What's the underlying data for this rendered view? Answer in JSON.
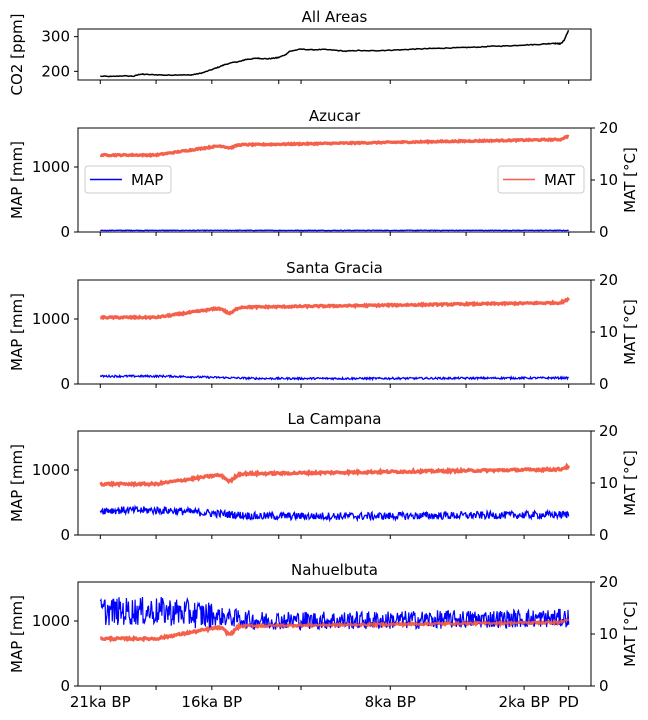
{
  "chart_data": [
    {
      "type": "line",
      "title": "All Areas",
      "ylabel": "CO2 [ppm]",
      "ylim": [
        175,
        322
      ],
      "yticks": [
        200,
        300
      ],
      "x_ticks": [
        "21ka BP",
        "16ka BP",
        "8ka BP",
        "2ka BP",
        "PD"
      ],
      "x_tick_positions_ka": [
        -21,
        -16,
        -8,
        -2,
        0
      ],
      "xlim_ka": [
        -22,
        1
      ],
      "show_xtick_labels": false,
      "series": [
        {
          "color": "#000000",
          "x_ka": [
            -21,
            -20.5,
            -20,
            -19.5,
            -19.2,
            -19,
            -18.5,
            -18,
            -17.5,
            -17,
            -16.7,
            -16.4,
            -16,
            -15.7,
            -15.4,
            -15,
            -14.7,
            -14.5,
            -14.2,
            -14,
            -13.8,
            -13.5,
            -13.2,
            -13,
            -12.7,
            -12.5,
            -12,
            -11.5,
            -11,
            -10.5,
            -10,
            -9.5,
            -9,
            -8.5,
            -8,
            -7.5,
            -7,
            -6.5,
            -6,
            -5.5,
            -5,
            -4.5,
            -4,
            -3.5,
            -3,
            -2.5,
            -2,
            -1.5,
            -1,
            -0.7,
            -0.5,
            -0.4,
            -0.3,
            -0.2,
            -0.1,
            0
          ],
          "values": [
            186,
            185,
            187,
            186,
            192,
            191,
            190,
            189,
            190,
            189,
            192,
            196,
            205,
            212,
            220,
            226,
            229,
            234,
            236,
            238,
            237,
            236,
            238,
            240,
            248,
            258,
            264,
            262,
            263,
            261,
            258,
            260,
            259,
            260,
            261,
            262,
            264,
            265,
            266,
            267,
            268,
            269,
            270,
            272,
            273,
            274,
            276,
            277,
            279,
            281,
            280,
            279,
            283,
            290,
            305,
            318
          ]
        }
      ]
    },
    {
      "type": "line",
      "title": "Azucar",
      "ylabel": "MAP [mm]",
      "y2label": "MAT [°C]",
      "ylim": [
        0,
        1600
      ],
      "yticks": [
        0,
        1000
      ],
      "y2lim": [
        0,
        20
      ],
      "y2ticks": [
        0,
        10,
        20
      ],
      "x_ticks": [
        "21ka BP",
        "16ka BP",
        "8ka BP",
        "2ka BP",
        "PD"
      ],
      "xlim_ka": [
        -22,
        1
      ],
      "show_xtick_labels": false,
      "legend_left": "MAP",
      "legend_right": "MAT",
      "map": {
        "level": 25,
        "amp": 4
      },
      "mat": {
        "base": 14.8,
        "rise": 2.0,
        "dip": 0.6,
        "end": 18.0,
        "amp": 0.12
      }
    },
    {
      "type": "line",
      "title": "Santa Gracia",
      "ylabel": "MAP [mm]",
      "y2label": "MAT [°C]",
      "ylim": [
        0,
        1600
      ],
      "yticks": [
        0,
        1000
      ],
      "y2lim": [
        0,
        20
      ],
      "y2ticks": [
        0,
        10,
        20
      ],
      "x_ticks": [
        "21ka BP",
        "16ka BP",
        "8ka BP",
        "2ka BP",
        "PD"
      ],
      "xlim_ka": [
        -22,
        1
      ],
      "show_xtick_labels": false,
      "map": {
        "level": 120,
        "amp": 15,
        "drop": 35
      },
      "mat": {
        "base": 12.8,
        "rise": 2.0,
        "dip": 1.2,
        "end": 15.8,
        "amp": 0.15
      }
    },
    {
      "type": "line",
      "title": "La Campana",
      "ylabel": "MAP [mm]",
      "y2label": "MAT [°C]",
      "ylim": [
        0,
        1600
      ],
      "yticks": [
        0,
        1000
      ],
      "y2lim": [
        0,
        20
      ],
      "y2ticks": [
        0,
        10,
        20
      ],
      "x_ticks": [
        "21ka BP",
        "16ka BP",
        "8ka BP",
        "2ka BP",
        "PD"
      ],
      "xlim_ka": [
        -22,
        1
      ],
      "show_xtick_labels": false,
      "map": {
        "level": 380,
        "amp": 60,
        "drop": 90
      },
      "mat": {
        "base": 9.8,
        "rise": 2.0,
        "dip": 1.4,
        "end": 12.8,
        "amp": 0.2
      }
    },
    {
      "type": "line",
      "title": "Nahuelbuta",
      "ylabel": "MAP [mm]",
      "y2label": "MAT [°C]",
      "ylim": [
        0,
        1600
      ],
      "yticks": [
        0,
        1000
      ],
      "y2lim": [
        0,
        20
      ],
      "y2ticks": [
        0,
        10,
        20
      ],
      "x_ticks": [
        "21ka BP",
        "16ka BP",
        "8ka BP",
        "2ka BP",
        "PD"
      ],
      "xlim_ka": [
        -22,
        1
      ],
      "show_xtick_labels": true,
      "map": {
        "level": 1150,
        "amp": 220,
        "drop": 140
      },
      "mat": {
        "base": 9.1,
        "rise": 2.5,
        "dip": 1.6,
        "end": 12.4,
        "amp": 0.2
      }
    }
  ],
  "colors": {
    "map": "#0000ff",
    "mat": "#f4604a",
    "co2": "#000000"
  }
}
